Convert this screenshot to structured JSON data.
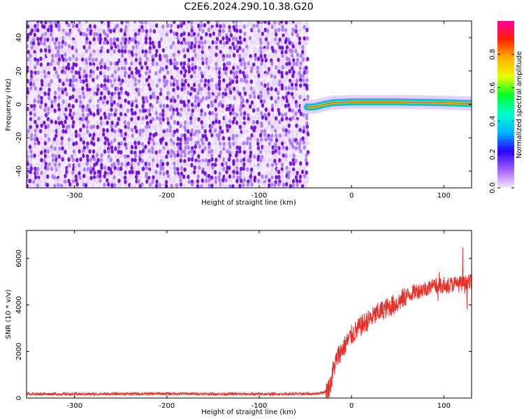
{
  "title": "C2E6.2024.290.10.38.G20",
  "chart_data": [
    {
      "type": "heatmap",
      "xlabel": "Height of straight line (km)",
      "ylabel": "Frequency (Hz)",
      "xlim": [
        -352,
        130
      ],
      "ylim": [
        -50,
        50
      ],
      "x_ticks": [
        -300,
        -200,
        -100,
        0,
        100
      ],
      "y_ticks": [
        -40,
        -20,
        0,
        20,
        40
      ],
      "noise_region_x": [
        -352,
        -48
      ],
      "signal_region_x": [
        -48,
        130
      ],
      "signal_frequency_track": [
        {
          "x": -48,
          "y": -1.5
        },
        {
          "x": -40,
          "y": -1.5
        },
        {
          "x": -30,
          "y": 0
        },
        {
          "x": -20,
          "y": 1
        },
        {
          "x": 0,
          "y": 1.5
        },
        {
          "x": 50,
          "y": 1.5
        },
        {
          "x": 100,
          "y": 1
        },
        {
          "x": 130,
          "y": 0.5
        }
      ],
      "colorbar": {
        "label": "Normalized spectral amplitude",
        "range": [
          0,
          1
        ],
        "ticks": [
          "0.0",
          "0.2",
          "0.4",
          "0.6",
          "0.8"
        ],
        "colors": [
          "#f4eaff",
          "#9f5cff",
          "#2b00ff",
          "#00b8ff",
          "#00ffd0",
          "#00ff2a",
          "#e6ff00",
          "#ffb000",
          "#ff2200",
          "#ff009a"
        ]
      },
      "colors": {
        "noise_dark": "#6a00e0",
        "noise_light": "#e6d4ff",
        "signal_core": "#ff3a1a",
        "signal_edge": "#00d98a"
      }
    },
    {
      "type": "line",
      "xlabel": "Height of straight line (km)",
      "ylabel": "SNR (10 * v/v)",
      "xlim": [
        -352,
        130
      ],
      "ylim": [
        0,
        7200
      ],
      "x_ticks": [
        -300,
        -200,
        -100,
        0,
        100
      ],
      "y_ticks": [
        0,
        2000,
        4000,
        6000
      ],
      "line_color": "#e8302a",
      "series": [
        {
          "x": [
            -352,
            -300,
            -250,
            -200,
            -150,
            -100,
            -60,
            -40,
            -30,
            -25,
            -22,
            -20,
            -15,
            -10,
            -5,
            0,
            10,
            20,
            30,
            40,
            50,
            60,
            70,
            80,
            90,
            100,
            110,
            120,
            130
          ],
          "y": [
            180,
            170,
            180,
            190,
            180,
            170,
            180,
            180,
            250,
            400,
            700,
            1200,
            1800,
            2100,
            2400,
            2700,
            3100,
            3400,
            3700,
            3900,
            4100,
            4400,
            4600,
            4700,
            4800,
            4800,
            4900,
            4900,
            5000
          ]
        }
      ]
    }
  ]
}
